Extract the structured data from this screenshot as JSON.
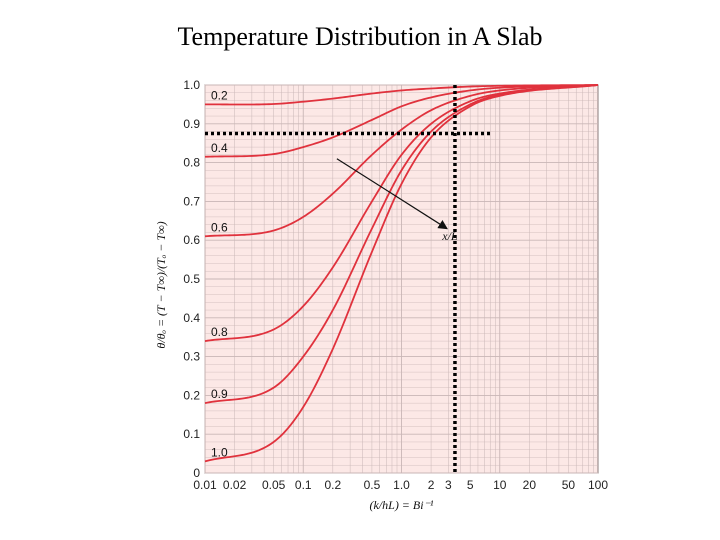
{
  "slide": {
    "title": "Temperature Distribution in A Slab"
  },
  "chart_data": {
    "type": "line",
    "title": "Temperature Distribution in A Slab",
    "xlabel": "(k/hL) = Bi⁻¹",
    "ylabel": "θ/θₒ = (T − T∞)/(Tₒ − T∞)",
    "xscale": "log",
    "xlim": [
      0.01,
      100
    ],
    "ylim": [
      0,
      1.0
    ],
    "grid": true,
    "x_tick_labels": [
      "0.01",
      "0.02",
      "0.05",
      "0.1",
      "0.2",
      "0.5",
      "1.0",
      "2",
      "3",
      "5",
      "10",
      "20",
      "50",
      "100"
    ],
    "x_tick_values": [
      0.01,
      0.02,
      0.05,
      0.1,
      0.2,
      0.5,
      1,
      2,
      3,
      5,
      10,
      20,
      50,
      100
    ],
    "y_tick_labels": [
      "0",
      "0.1",
      "0.2",
      "0.3",
      "0.4",
      "0.5",
      "0.6",
      "0.7",
      "0.8",
      "0.9",
      "1.0"
    ],
    "y_tick_values": [
      0,
      0.1,
      0.2,
      0.3,
      0.4,
      0.5,
      0.6,
      0.7,
      0.8,
      0.9,
      1.0
    ],
    "arrow_label": "x/L",
    "series": [
      {
        "name": "0.2",
        "x": [
          0.01,
          0.05,
          0.1,
          0.2,
          0.5,
          1,
          2,
          5,
          10,
          100
        ],
        "y": [
          0.95,
          0.951,
          0.957,
          0.965,
          0.978,
          0.986,
          0.991,
          0.996,
          0.998,
          1.0
        ]
      },
      {
        "name": "0.4",
        "x": [
          0.01,
          0.05,
          0.1,
          0.2,
          0.5,
          1,
          2,
          5,
          10,
          100
        ],
        "y": [
          0.815,
          0.822,
          0.84,
          0.865,
          0.91,
          0.945,
          0.968,
          0.986,
          0.993,
          1.0
        ]
      },
      {
        "name": "0.6",
        "x": [
          0.01,
          0.05,
          0.1,
          0.2,
          0.5,
          1,
          2,
          5,
          10,
          100
        ],
        "y": [
          0.61,
          0.625,
          0.66,
          0.72,
          0.82,
          0.885,
          0.935,
          0.972,
          0.986,
          1.0
        ]
      },
      {
        "name": "0.8",
        "x": [
          0.01,
          0.05,
          0.1,
          0.2,
          0.5,
          1,
          2,
          5,
          10,
          100
        ],
        "y": [
          0.34,
          0.37,
          0.43,
          0.53,
          0.7,
          0.82,
          0.9,
          0.958,
          0.978,
          1.0
        ]
      },
      {
        "name": "0.9",
        "x": [
          0.01,
          0.05,
          0.1,
          0.2,
          0.5,
          1,
          2,
          5,
          10,
          100
        ],
        "y": [
          0.18,
          0.22,
          0.3,
          0.42,
          0.63,
          0.78,
          0.88,
          0.95,
          0.975,
          1.0
        ]
      },
      {
        "name": "1.0",
        "x": [
          0.01,
          0.05,
          0.1,
          0.2,
          0.5,
          1,
          2,
          5,
          10,
          100
        ],
        "y": [
          0.03,
          0.08,
          0.17,
          0.32,
          0.57,
          0.745,
          0.865,
          0.945,
          0.972,
          1.0
        ]
      }
    ],
    "annotations": [
      {
        "type": "vertical-dotted-line",
        "x": 3.5,
        "y_from": 0,
        "y_to": 1.0
      },
      {
        "type": "horizontal-dotted-line",
        "y": 0.875,
        "x_from": 0.01,
        "x_to": 8.5
      }
    ],
    "colors": {
      "background": "#fce8e6",
      "grid": "#c9b6b6",
      "curve": "#e0323d",
      "guide": "#000000"
    }
  }
}
